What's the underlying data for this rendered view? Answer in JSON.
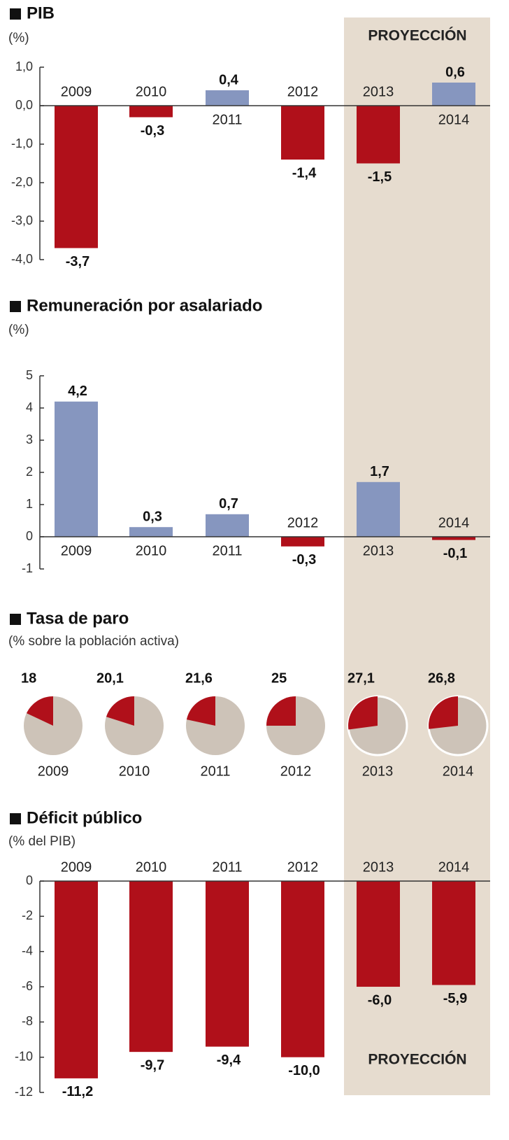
{
  "projection": {
    "label": "PROYECCIÓN",
    "color": "#e6dccf"
  },
  "chart_data": [
    {
      "type": "bar",
      "title": "PIB",
      "subtitle": "(%)",
      "categories": [
        "2009",
        "2010",
        "2011",
        "2012",
        "2013",
        "2014"
      ],
      "values": [
        -3.7,
        -0.3,
        0.4,
        -1.4,
        -1.5,
        0.6
      ],
      "value_labels": [
        "-3,7",
        "-0,3",
        "0,4",
        "-1,4",
        "-1,5",
        "0,6"
      ],
      "positive_color": "#8696bf",
      "negative_color": "#b0101a",
      "ylim": [
        -4,
        1
      ],
      "yticks": [
        {
          "value": 1,
          "label": "1,0"
        },
        {
          "value": 0,
          "label": "0,0"
        },
        {
          "value": -1,
          "label": "-1,0"
        },
        {
          "value": -2,
          "label": "-2,0"
        },
        {
          "value": -3,
          "label": "-3,0"
        },
        {
          "value": -4,
          "label": "-4,0"
        }
      ]
    },
    {
      "type": "bar",
      "title": "Remuneración por asalariado",
      "subtitle": "(%)",
      "categories": [
        "2009",
        "2010",
        "2011",
        "2012",
        "2013",
        "2014"
      ],
      "values": [
        4.2,
        0.3,
        0.7,
        -0.3,
        1.7,
        -0.1
      ],
      "value_labels": [
        "4,2",
        "0,3",
        "0,7",
        "-0,3",
        "1,7",
        "-0,1"
      ],
      "positive_color": "#8696bf",
      "negative_color": "#b0101a",
      "ylim": [
        -1,
        5
      ],
      "yticks": [
        5,
        4,
        3,
        2,
        1,
        0,
        -1
      ]
    },
    {
      "type": "pie",
      "title": "Tasa de paro",
      "subtitle": "(% sobre la población activa)",
      "categories": [
        "2009",
        "2010",
        "2011",
        "2012",
        "2013",
        "2014"
      ],
      "values": [
        18,
        20.1,
        21.6,
        25,
        27.1,
        26.8
      ],
      "value_labels": [
        "18",
        "20,1",
        "21,6",
        "25",
        "27,1",
        "26,8"
      ],
      "color": "#b0101a",
      "rest_color": "#cdc3b8"
    },
    {
      "type": "bar",
      "title": "Déficit público",
      "subtitle": "(% del PIB)",
      "categories": [
        "2009",
        "2010",
        "2011",
        "2012",
        "2013",
        "2014"
      ],
      "values": [
        -11.2,
        -9.7,
        -9.4,
        -10.0,
        -6.0,
        -5.9
      ],
      "value_labels": [
        "-11,2",
        "-9,7",
        "-9,4",
        "-10,0",
        "-6,0",
        "-5,9"
      ],
      "positive_color": "#8696bf",
      "negative_color": "#b0101a",
      "ylim": [
        -12,
        0
      ],
      "yticks": [
        0,
        -2,
        -4,
        -6,
        -8,
        -10,
        -12
      ]
    }
  ]
}
